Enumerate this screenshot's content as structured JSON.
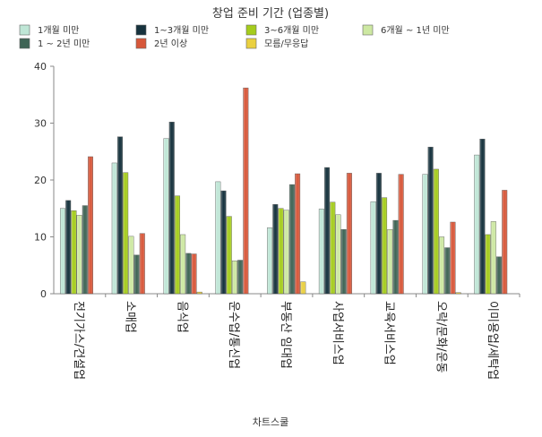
{
  "chart_data": {
    "type": "bar",
    "title": "창업 준비 기간 (업종별)",
    "xlabel": "차트스쿨",
    "ylabel": "",
    "ylim": [
      0,
      40
    ],
    "yticks": [
      0,
      10,
      20,
      30,
      40
    ],
    "grid": false,
    "legend_position": "top",
    "categories": [
      "전기가스/건설업",
      "소매업",
      "음식업",
      "운수업/통신업",
      "부동산 임대업",
      "사업서비스업",
      "교육서비스업",
      "오락/문화/운동",
      "이미용업/세탁업"
    ],
    "series": [
      {
        "name": "1개월 미만",
        "color": "#bfe6d6",
        "values": [
          15.0,
          23.0,
          27.3,
          19.7,
          11.6,
          14.9,
          16.2,
          21.0,
          24.4
        ]
      },
      {
        "name": "1~3개월 미만",
        "color": "#16323d",
        "values": [
          16.4,
          27.6,
          30.2,
          18.1,
          15.7,
          22.2,
          21.2,
          25.8,
          27.2
        ]
      },
      {
        "name": "3~6개월 미만",
        "color": "#a5cc1c",
        "values": [
          14.6,
          21.3,
          17.2,
          13.6,
          15.0,
          16.1,
          16.9,
          21.9,
          10.4
        ]
      },
      {
        "name": "6개월 ~ 1년 미만",
        "color": "#cde8a2",
        "values": [
          13.8,
          10.1,
          10.4,
          5.8,
          14.7,
          13.9,
          11.3,
          10.0,
          12.7
        ]
      },
      {
        "name": "1 ~ 2년 미만",
        "color": "#3f6455",
        "values": [
          15.5,
          6.8,
          7.1,
          5.9,
          19.2,
          11.3,
          12.9,
          8.1,
          6.5
        ]
      },
      {
        "name": "2년 이상",
        "color": "#d7573a",
        "values": [
          24.1,
          10.6,
          7.0,
          36.2,
          21.1,
          21.2,
          21.0,
          12.6,
          18.2
        ]
      },
      {
        "name": "모름/무응답",
        "color": "#ead040",
        "values": [
          0,
          0,
          0.3,
          0,
          2.1,
          0,
          0,
          0.2,
          0
        ]
      }
    ]
  }
}
